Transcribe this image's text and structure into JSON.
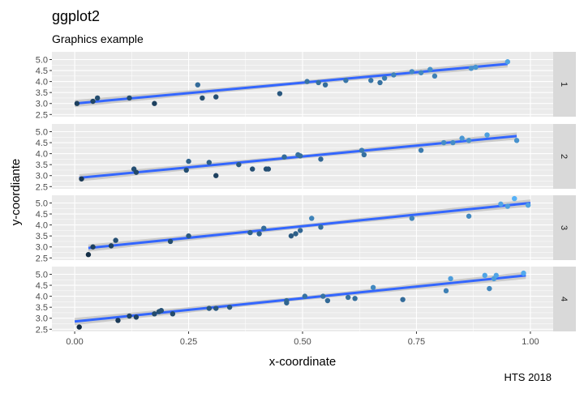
{
  "chart_data": {
    "type": "scatter",
    "title": "ggplot2",
    "subtitle": "Graphics example",
    "xlabel": "x-coordinate",
    "ylabel": "y-coordiante",
    "caption": "HTS 2018",
    "xlim": [
      -0.05,
      1.05
    ],
    "ylim": [
      2.4,
      5.35
    ],
    "x_ticks": [
      0.0,
      0.25,
      0.5,
      0.75,
      1.0
    ],
    "x_tick_labels": [
      "0.00",
      "0.25",
      "0.50",
      "0.75",
      "1.00"
    ],
    "y_ticks": [
      2.5,
      3.0,
      3.5,
      4.0,
      4.5,
      5.0
    ],
    "y_tick_labels": [
      "2.5",
      "3.0",
      "3.5",
      "4.0",
      "4.5",
      "5.0"
    ],
    "grid": true,
    "smooth": "linear fit with confidence band",
    "colors": {
      "panel_bg": "#ebebeb",
      "grid": "#ffffff",
      "strip_bg": "#d9d9d9",
      "line": "#3366ff",
      "band": "#bfbfbf",
      "point_low": "#132b43",
      "point_high": "#56b1f7"
    },
    "facets": [
      {
        "strip": "1",
        "fit": [
          [
            0.0,
            3.0
          ],
          [
            0.95,
            4.8
          ]
        ],
        "points": [
          [
            0.005,
            3.0
          ],
          [
            0.04,
            3.1
          ],
          [
            0.05,
            3.25
          ],
          [
            0.12,
            3.25
          ],
          [
            0.175,
            3.0
          ],
          [
            0.27,
            3.85
          ],
          [
            0.28,
            3.25
          ],
          [
            0.31,
            3.3
          ],
          [
            0.45,
            3.45
          ],
          [
            0.51,
            4.0
          ],
          [
            0.535,
            3.95
          ],
          [
            0.55,
            3.85
          ],
          [
            0.595,
            4.05
          ],
          [
            0.65,
            4.05
          ],
          [
            0.67,
            3.95
          ],
          [
            0.68,
            4.15
          ],
          [
            0.7,
            4.3
          ],
          [
            0.74,
            4.45
          ],
          [
            0.76,
            4.4
          ],
          [
            0.78,
            4.55
          ],
          [
            0.79,
            4.25
          ],
          [
            0.87,
            4.6
          ],
          [
            0.88,
            4.65
          ],
          [
            0.95,
            4.9
          ]
        ]
      },
      {
        "strip": "2",
        "fit": [
          [
            0.01,
            2.9
          ],
          [
            0.97,
            4.8
          ]
        ],
        "points": [
          [
            0.015,
            2.85
          ],
          [
            0.13,
            3.3
          ],
          [
            0.135,
            3.15
          ],
          [
            0.245,
            3.25
          ],
          [
            0.25,
            3.65
          ],
          [
            0.295,
            3.6
          ],
          [
            0.31,
            3.0
          ],
          [
            0.36,
            3.5
          ],
          [
            0.39,
            3.3
          ],
          [
            0.42,
            3.3
          ],
          [
            0.425,
            3.3
          ],
          [
            0.46,
            3.85
          ],
          [
            0.49,
            3.95
          ],
          [
            0.495,
            3.9
          ],
          [
            0.54,
            3.75
          ],
          [
            0.63,
            4.15
          ],
          [
            0.635,
            3.95
          ],
          [
            0.76,
            4.15
          ],
          [
            0.81,
            4.5
          ],
          [
            0.83,
            4.5
          ],
          [
            0.85,
            4.7
          ],
          [
            0.865,
            4.6
          ],
          [
            0.905,
            4.85
          ],
          [
            0.97,
            4.6
          ]
        ]
      },
      {
        "strip": "3",
        "fit": [
          [
            0.03,
            2.95
          ],
          [
            1.0,
            5.0
          ]
        ],
        "points": [
          [
            0.03,
            2.65
          ],
          [
            0.04,
            3.0
          ],
          [
            0.08,
            3.05
          ],
          [
            0.09,
            3.3
          ],
          [
            0.21,
            3.25
          ],
          [
            0.25,
            3.5
          ],
          [
            0.385,
            3.65
          ],
          [
            0.405,
            3.6
          ],
          [
            0.415,
            3.85
          ],
          [
            0.475,
            3.5
          ],
          [
            0.485,
            3.6
          ],
          [
            0.495,
            3.75
          ],
          [
            0.52,
            4.3
          ],
          [
            0.54,
            3.9
          ],
          [
            0.74,
            4.3
          ],
          [
            0.865,
            4.4
          ],
          [
            0.935,
            4.95
          ],
          [
            0.95,
            4.85
          ],
          [
            0.965,
            5.2
          ],
          [
            0.995,
            4.9
          ]
        ]
      },
      {
        "strip": "4",
        "fit": [
          [
            0.0,
            2.85
          ],
          [
            0.99,
            4.95
          ]
        ],
        "points": [
          [
            0.01,
            2.6
          ],
          [
            0.095,
            2.9
          ],
          [
            0.12,
            3.1
          ],
          [
            0.135,
            3.05
          ],
          [
            0.175,
            3.2
          ],
          [
            0.185,
            3.3
          ],
          [
            0.19,
            3.35
          ],
          [
            0.215,
            3.2
          ],
          [
            0.295,
            3.45
          ],
          [
            0.31,
            3.45
          ],
          [
            0.34,
            3.5
          ],
          [
            0.465,
            3.8
          ],
          [
            0.465,
            3.7
          ],
          [
            0.505,
            4.0
          ],
          [
            0.545,
            4.0
          ],
          [
            0.555,
            3.8
          ],
          [
            0.6,
            3.95
          ],
          [
            0.615,
            3.9
          ],
          [
            0.655,
            4.4
          ],
          [
            0.72,
            3.85
          ],
          [
            0.815,
            4.25
          ],
          [
            0.825,
            4.8
          ],
          [
            0.9,
            4.95
          ],
          [
            0.91,
            4.35
          ],
          [
            0.92,
            4.8
          ],
          [
            0.925,
            4.95
          ],
          [
            0.985,
            5.05
          ]
        ]
      }
    ]
  }
}
